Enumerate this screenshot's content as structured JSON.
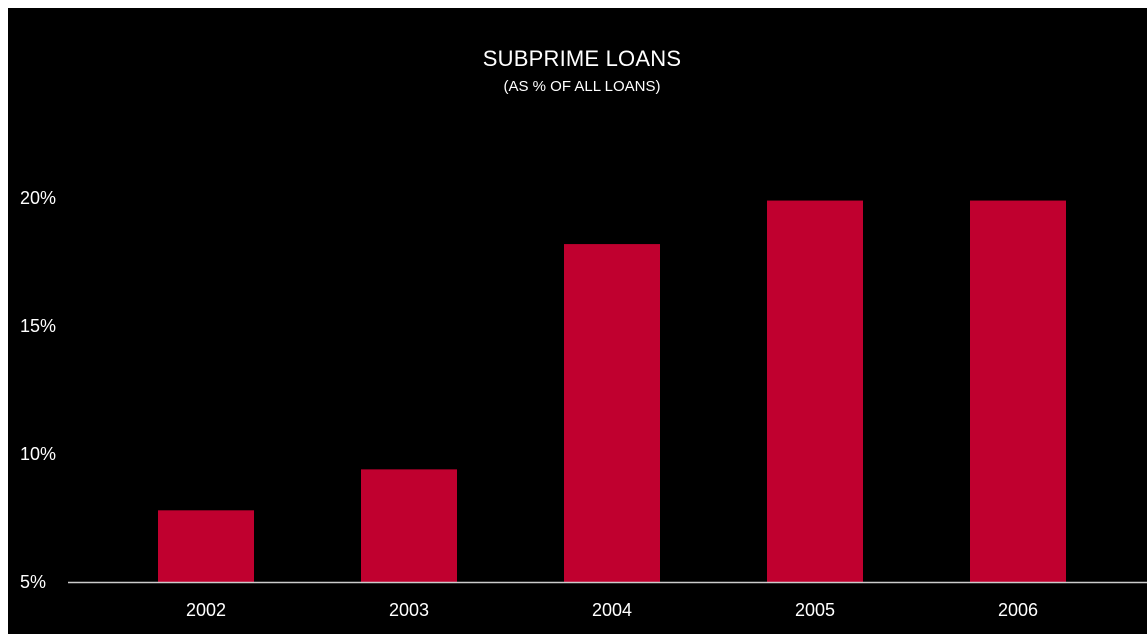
{
  "chart_data": {
    "type": "bar",
    "title": "SUBPRIME LOANS",
    "subtitle": "(AS % OF ALL LOANS)",
    "categories": [
      "2002",
      "2003",
      "2004",
      "2005",
      "2006"
    ],
    "values": [
      7.8,
      9.4,
      18.2,
      19.9,
      19.9
    ],
    "ylim": [
      5,
      20
    ],
    "yticks": [
      5,
      10,
      15,
      20
    ],
    "ytick_labels": [
      "5%",
      "10%",
      "15%",
      "20%"
    ],
    "xlabel": "",
    "ylabel": "",
    "grid": false,
    "bar_color": "#c0002f",
    "axis_color": "#cccccc",
    "background": "#000000"
  }
}
